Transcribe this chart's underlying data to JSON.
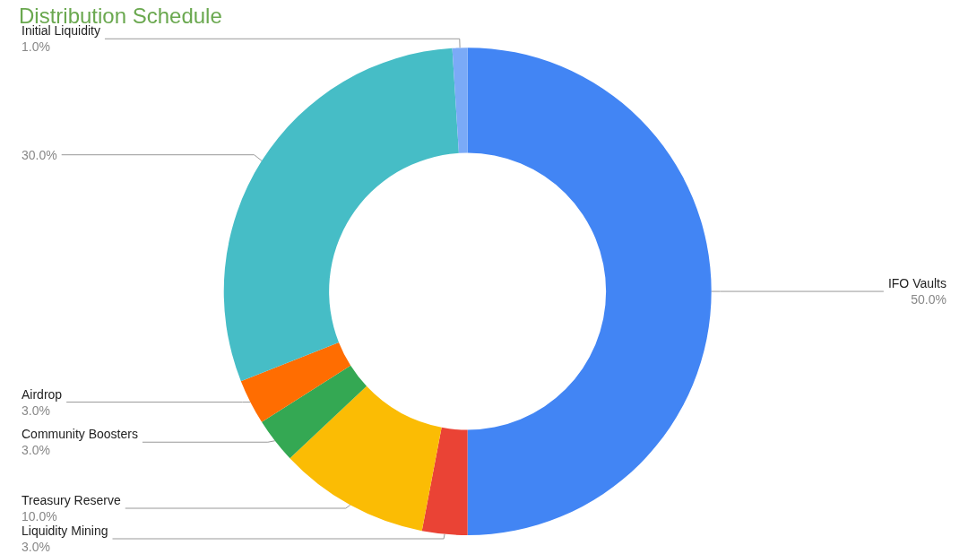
{
  "chart_data": {
    "type": "donut",
    "title": "Distribution Schedule",
    "categories": [
      "IFO Vaults",
      "Liquidity Mining",
      "Treasury Reserve",
      "Community Boosters",
      "Airdrop",
      null,
      "Initial Liquidity"
    ],
    "values": [
      50,
      3,
      10,
      3,
      3,
      30,
      1
    ],
    "value_labels": [
      "50.0%",
      "3.0%",
      "10.0%",
      "3.0%",
      "3.0%",
      "30.0%",
      "1.0%"
    ],
    "colors": [
      "#4285f4",
      "#ea4335",
      "#fbbc04",
      "#34a853",
      "#ff6d01",
      "#46bdc6",
      "#7baaf7"
    ],
    "legend": false
  }
}
